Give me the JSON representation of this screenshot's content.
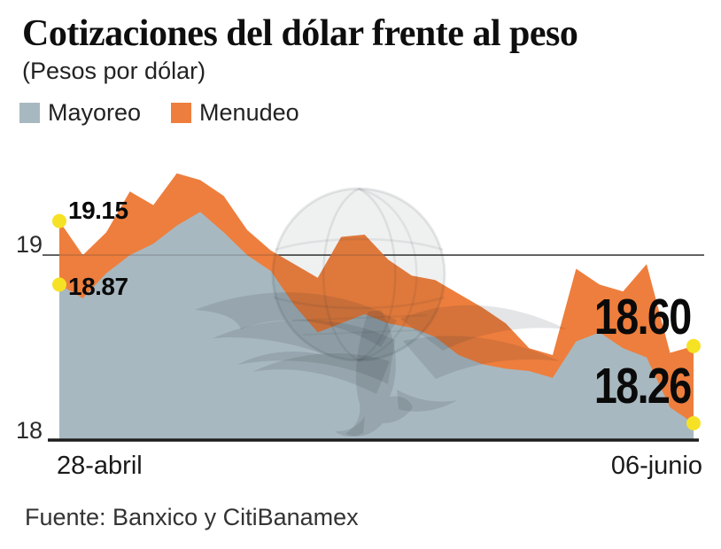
{
  "header": {
    "title": "Cotizaciones del dólar frente al peso",
    "subtitle": "(Pesos por dólar)"
  },
  "legend": [
    {
      "label": "Mayoreo",
      "color": "#a8b8c0"
    },
    {
      "label": "Menudeo",
      "color": "#ee7e3d"
    }
  ],
  "chart_data": {
    "type": "area",
    "title": "Cotizaciones del dólar frente al peso",
    "subtitle": "(Pesos por dólar)",
    "ylabel": "Pesos por dólar",
    "yticks": [
      "19",
      "18"
    ],
    "ylim": [
      18.19,
      19.46
    ],
    "x_start_label": "28-abril",
    "x_end_label": "06-junio",
    "grid": "single horizontal gridline at 19",
    "legend_position": "top-left",
    "series": [
      {
        "name": "Menudeo",
        "color": "#ee7e3d",
        "values": [
          19.15,
          19.0,
          19.1,
          19.28,
          19.22,
          19.36,
          19.33,
          19.26,
          19.11,
          19.02,
          18.96,
          18.9,
          19.08,
          19.09,
          18.98,
          18.91,
          18.89,
          18.83,
          18.77,
          18.7,
          18.59,
          18.56,
          18.94,
          18.87,
          18.84,
          18.96,
          18.57,
          18.6
        ]
      },
      {
        "name": "Mayoreo",
        "color": "#a8b8c0",
        "values": [
          18.87,
          18.81,
          18.92,
          19.0,
          19.05,
          19.13,
          19.19,
          19.1,
          19.0,
          18.93,
          18.78,
          18.66,
          18.7,
          18.74,
          18.7,
          18.68,
          18.64,
          18.56,
          18.52,
          18.5,
          18.49,
          18.46,
          18.62,
          18.66,
          18.59,
          18.55,
          18.33,
          18.26
        ]
      }
    ],
    "annotations": {
      "start_menudeo": "19.15",
      "start_mayoreo": "18.87",
      "end_menudeo": "18.60",
      "end_mayoreo": "18.26"
    },
    "marker_color": "#f6e224",
    "axis_color": "#1d1d1d",
    "gridline_color": "#4a4a4a"
  },
  "source": "Fuente: Banxico y CitiBanamex"
}
